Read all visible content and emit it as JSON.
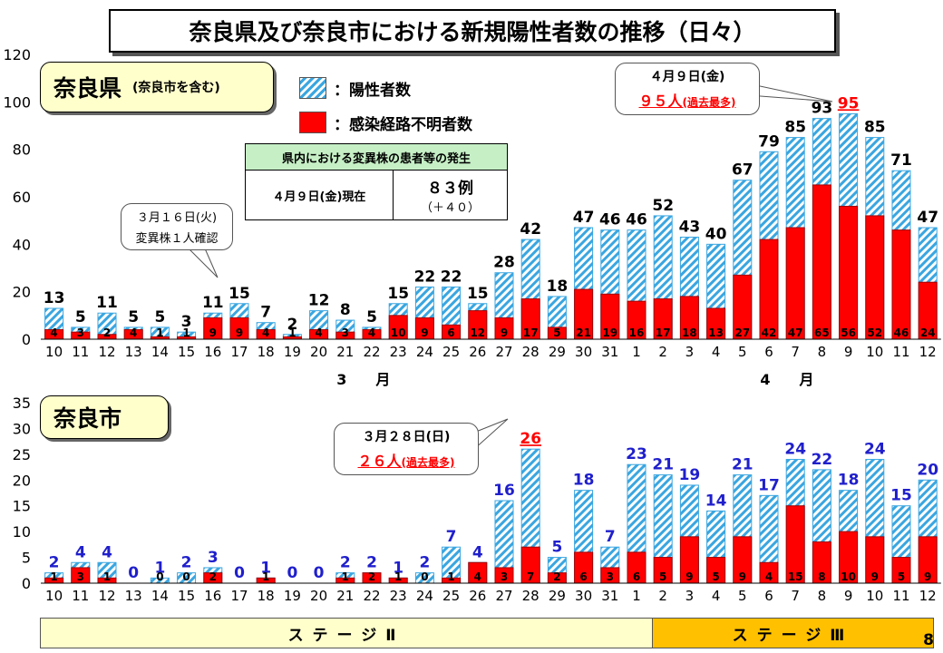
{
  "title": "奈良県及び奈良市における新規陽性者数の推移（日々）",
  "legend": {
    "positive": "：陽性者数",
    "unknown": "：感染経路不明者数"
  },
  "variant_box": {
    "header": "県内における変異株の患者等の発生",
    "date": "４月９日(金)現在",
    "value": "８３例",
    "delta": "（＋４０）"
  },
  "colors": {
    "hatch": "#3aa6e0",
    "red": "#ff0000",
    "blue_label": "#1f1fcc",
    "label_bg": "#ffffcc",
    "stage2": "#ffffcc",
    "stage3": "#ffc000"
  },
  "page_number": "8",
  "chart_data": [
    {
      "type": "bar",
      "title": "奈良県",
      "subtitle": "(奈良市を含む)",
      "categories": [
        "10",
        "11",
        "12",
        "13",
        "14",
        "15",
        "16",
        "17",
        "18",
        "19",
        "20",
        "21",
        "22",
        "23",
        "24",
        "25",
        "26",
        "27",
        "28",
        "29",
        "30",
        "31",
        "1",
        "2",
        "3",
        "4",
        "5",
        "6",
        "7",
        "8",
        "9",
        "10",
        "11",
        "12"
      ],
      "series": [
        {
          "name": "陽性者数",
          "values": [
            13,
            5,
            11,
            5,
            5,
            3,
            11,
            15,
            7,
            2,
            12,
            8,
            5,
            15,
            22,
            22,
            15,
            28,
            42,
            18,
            47,
            46,
            46,
            52,
            43,
            40,
            67,
            79,
            85,
            93,
            95,
            85,
            71,
            47
          ]
        },
        {
          "name": "感染経路不明者数",
          "values": [
            4,
            3,
            2,
            4,
            1,
            1,
            9,
            9,
            4,
            1,
            4,
            3,
            4,
            10,
            9,
            6,
            12,
            9,
            17,
            5,
            21,
            19,
            16,
            17,
            18,
            13,
            27,
            42,
            47,
            65,
            56,
            52,
            46,
            24
          ]
        }
      ],
      "ylim": [
        0,
        120
      ],
      "yticks": [
        "0",
        "20",
        "40",
        "60",
        "80",
        "100",
        "120"
      ],
      "month_labels": [
        "3　　月",
        "4　　月"
      ],
      "callouts": [
        {
          "line1": "３月１６日(火)",
          "line2": "変異株１人確認"
        },
        {
          "line1": "４月９日(金)",
          "line2_main": "９５人",
          "line2_sub": "(過去最多)"
        }
      ]
    },
    {
      "type": "bar",
      "title": "奈良市",
      "categories": [
        "10",
        "11",
        "12",
        "13",
        "14",
        "15",
        "16",
        "17",
        "18",
        "19",
        "20",
        "21",
        "22",
        "23",
        "24",
        "25",
        "26",
        "27",
        "28",
        "29",
        "30",
        "31",
        "1",
        "2",
        "3",
        "4",
        "5",
        "6",
        "7",
        "8",
        "9",
        "10",
        "11",
        "12"
      ],
      "series": [
        {
          "name": "陽性者数",
          "values": [
            2,
            4,
            4,
            0,
            1,
            2,
            3,
            0,
            1,
            0,
            0,
            2,
            2,
            1,
            2,
            7,
            4,
            16,
            26,
            5,
            18,
            7,
            23,
            21,
            19,
            14,
            21,
            17,
            24,
            22,
            18,
            24,
            15,
            20
          ]
        },
        {
          "name": "感染経路不明者数",
          "values": [
            1,
            3,
            1,
            0,
            0,
            0,
            2,
            0,
            1,
            0,
            0,
            1,
            2,
            1,
            0,
            1,
            4,
            3,
            7,
            2,
            6,
            3,
            6,
            5,
            9,
            5,
            9,
            4,
            15,
            8,
            10,
            9,
            5,
            9
          ]
        }
      ],
      "ylim": [
        0,
        35
      ],
      "yticks": [
        "0",
        "5",
        "10",
        "15",
        "20",
        "25",
        "30",
        "35"
      ],
      "callouts": [
        {
          "line1": "３月２８日(日)",
          "line2_main": "２６人",
          "line2_sub": "(過去最多)"
        }
      ],
      "stages": [
        {
          "label": "ステージⅡ",
          "from_index": 0,
          "to_index": 22
        },
        {
          "label": "ステージⅢ",
          "from_index": 23,
          "to_index": 33
        }
      ]
    }
  ]
}
